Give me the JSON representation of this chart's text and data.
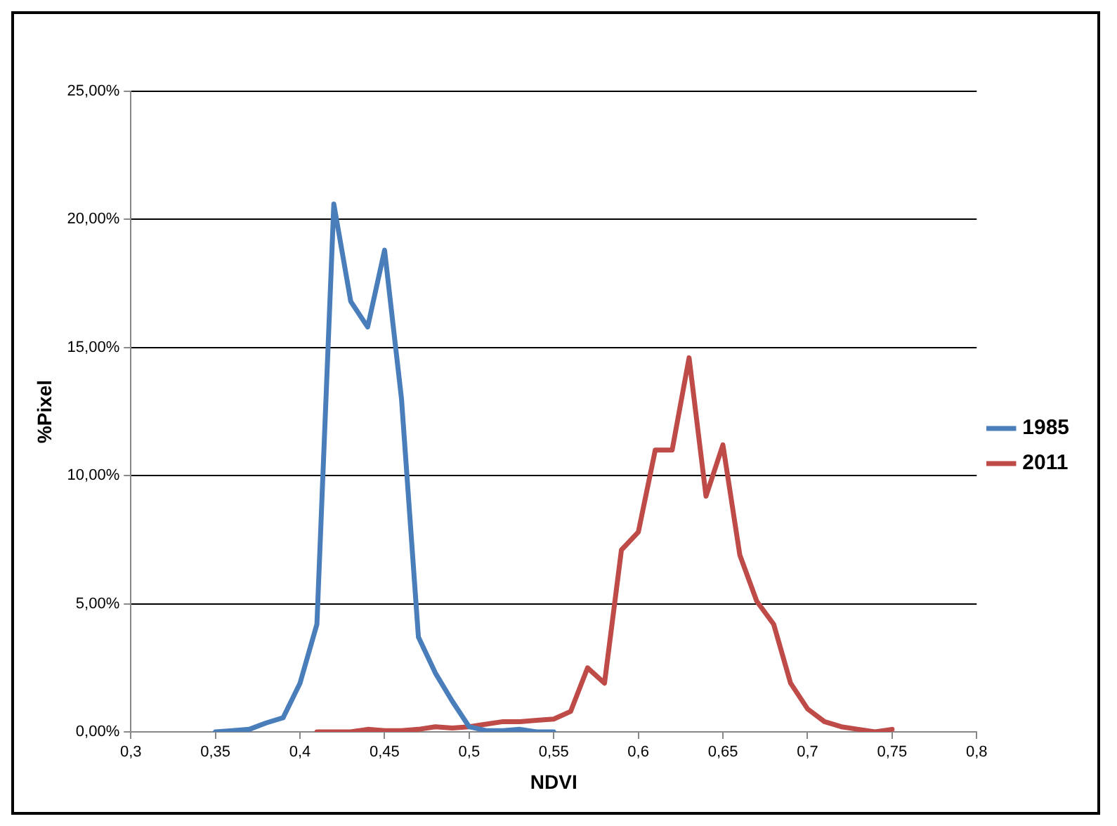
{
  "chart_data": {
    "type": "line",
    "xlabel": "NDVI",
    "ylabel": "%Pixel",
    "xlim": [
      0.3,
      0.8
    ],
    "xticks": [
      {
        "value": 0.3,
        "label": "0,3"
      },
      {
        "value": 0.35,
        "label": "0,35"
      },
      {
        "value": 0.4,
        "label": "0,4"
      },
      {
        "value": 0.45,
        "label": "0,45"
      },
      {
        "value": 0.5,
        "label": "0,5"
      },
      {
        "value": 0.55,
        "label": "0,55"
      },
      {
        "value": 0.6,
        "label": "0,6"
      },
      {
        "value": 0.65,
        "label": "0,65"
      },
      {
        "value": 0.7,
        "label": "0,7"
      },
      {
        "value": 0.75,
        "label": "0,75"
      },
      {
        "value": 0.8,
        "label": "0,8"
      }
    ],
    "ylim": [
      0,
      25
    ],
    "yticks": [
      {
        "value": 0,
        "label": "0,00%"
      },
      {
        "value": 5,
        "label": "5,00%"
      },
      {
        "value": 10,
        "label": "10,00%"
      },
      {
        "value": 15,
        "label": "15,00%"
      },
      {
        "value": 20,
        "label": "20,00%"
      },
      {
        "value": 25,
        "label": "25,00%"
      }
    ],
    "grid": "y",
    "legend": "right",
    "marker": "none",
    "line_style": "solid",
    "series": [
      {
        "name": "1985",
        "color": "#4a7ebb",
        "x": [
          0.35,
          0.36,
          0.37,
          0.38,
          0.39,
          0.4,
          0.41,
          0.42,
          0.43,
          0.44,
          0.45,
          0.46,
          0.47,
          0.48,
          0.49,
          0.5,
          0.51,
          0.52,
          0.53,
          0.54,
          0.55
        ],
        "values": [
          0,
          0.05,
          0.1,
          0.35,
          0.55,
          1.9,
          4.2,
          20.6,
          16.8,
          15.8,
          18.8,
          13,
          3.7,
          2.3,
          1.2,
          0.2,
          0.05,
          0.05,
          0.1,
          0,
          0
        ]
      },
      {
        "name": "2011",
        "color": "#be4b48",
        "x": [
          0.41,
          0.42,
          0.43,
          0.44,
          0.45,
          0.46,
          0.47,
          0.48,
          0.49,
          0.5,
          0.51,
          0.52,
          0.53,
          0.54,
          0.55,
          0.56,
          0.57,
          0.58,
          0.59,
          0.6,
          0.61,
          0.62,
          0.63,
          0.64,
          0.65,
          0.66,
          0.67,
          0.68,
          0.69,
          0.7,
          0.71,
          0.72,
          0.73,
          0.74,
          0.75
        ],
        "values": [
          0,
          0,
          0,
          0.1,
          0.05,
          0.05,
          0.1,
          0.2,
          0.15,
          0.2,
          0.3,
          0.4,
          0.4,
          0.45,
          0.5,
          0.8,
          2.5,
          1.9,
          7.1,
          7.8,
          11,
          11,
          14.6,
          9.2,
          11.2,
          6.9,
          5.1,
          4.2,
          1.9,
          0.9,
          0.4,
          0.2,
          0.1,
          0,
          0.1
        ]
      }
    ]
  }
}
